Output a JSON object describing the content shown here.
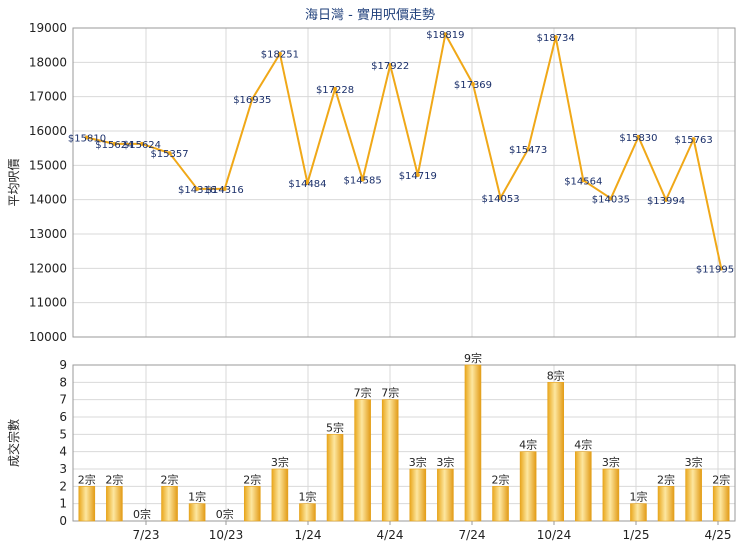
{
  "colors": {
    "line": "#f0a818",
    "bar_light": "#fde59a",
    "bar_dark": "#e5a21b",
    "title": "#1f3f7a",
    "label": "#1a2f6a"
  },
  "chart_data": [
    {
      "type": "line",
      "title": "海日灣 - 實用呎價走勢",
      "ylabel": "平均呎價",
      "ylim": [
        10000,
        19000
      ],
      "yticks": [
        "10000",
        "11000",
        "12000",
        "13000",
        "14000",
        "15000",
        "16000",
        "17000",
        "18000",
        "19000"
      ],
      "xticks": [
        "7/23",
        "10/23",
        "1/24",
        "4/24",
        "7/24",
        "10/24",
        "1/25",
        "4/25"
      ],
      "series": [
        {
          "values": [
            15810,
            15624,
            15624,
            15357,
            14316,
            14316,
            16935,
            18251,
            14484,
            17228,
            14585,
            17922,
            14719,
            18819,
            17369,
            14053,
            15473,
            18734,
            14564,
            14035,
            15830,
            13994,
            15763,
            11995
          ],
          "labels": [
            "$15810",
            "$15624",
            "$15624",
            "$15357",
            "$14316",
            "$14316",
            "$16935",
            "$18251",
            "$14484",
            "$17228",
            "$14585",
            "$17922",
            "$14719",
            "$18819",
            "$17369",
            "$14053",
            "$15473",
            "$18734",
            "$14564",
            "$14035",
            "$15830",
            "$13994",
            "$15763",
            "$11995"
          ]
        }
      ],
      "grid": true
    },
    {
      "type": "bar",
      "ylabel": "成交宗數",
      "ylim": [
        0,
        9
      ],
      "yticks": [
        "0",
        "1",
        "2",
        "3",
        "4",
        "5",
        "6",
        "7",
        "8",
        "9"
      ],
      "xticks": [
        "7/23",
        "10/23",
        "1/24",
        "4/24",
        "7/24",
        "10/24",
        "1/25",
        "4/25"
      ],
      "series": [
        {
          "values": [
            2,
            2,
            0,
            2,
            1,
            0,
            2,
            3,
            1,
            5,
            7,
            7,
            3,
            3,
            9,
            2,
            4,
            8,
            4,
            3,
            1,
            2,
            3,
            2
          ],
          "labels": [
            "2宗",
            "2宗",
            "0宗",
            "2宗",
            "1宗",
            "0宗",
            "2宗",
            "3宗",
            "1宗",
            "5宗",
            "7宗",
            "7宗",
            "3宗",
            "3宗",
            "9宗",
            "2宗",
            "4宗",
            "8宗",
            "4宗",
            "3宗",
            "1宗",
            "2宗",
            "3宗",
            "2宗"
          ]
        }
      ],
      "grid": true
    }
  ]
}
